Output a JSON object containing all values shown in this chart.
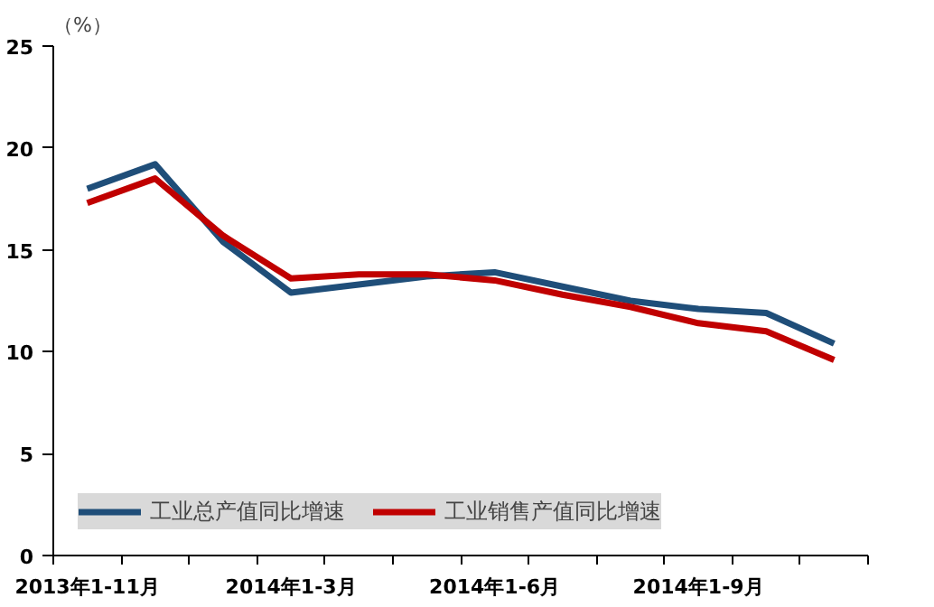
{
  "chart_data": {
    "type": "line",
    "ylabel": "（%）",
    "categories": [
      "2013年1-11月",
      null,
      null,
      "2014年1-3月",
      null,
      null,
      "2014年1-6月",
      null,
      null,
      "2014年1-9月",
      null,
      null
    ],
    "series": [
      {
        "name": "工业总产值同比增速",
        "color": "#1f4e79",
        "values": [
          18.0,
          19.2,
          15.4,
          12.9,
          13.3,
          13.7,
          13.9,
          13.2,
          12.5,
          12.1,
          11.9,
          10.4
        ]
      },
      {
        "name": "工业销售产值同比增速",
        "color": "#c00000",
        "values": [
          17.3,
          18.5,
          15.7,
          13.6,
          13.8,
          13.8,
          13.5,
          12.8,
          12.2,
          11.4,
          11.0,
          9.6
        ]
      }
    ],
    "ylim": [
      0,
      25
    ],
    "yticks": [
      0,
      5,
      10,
      15,
      20,
      25
    ],
    "grid": false,
    "legend": "bottom left",
    "marker": "none",
    "line_style": "solid"
  }
}
